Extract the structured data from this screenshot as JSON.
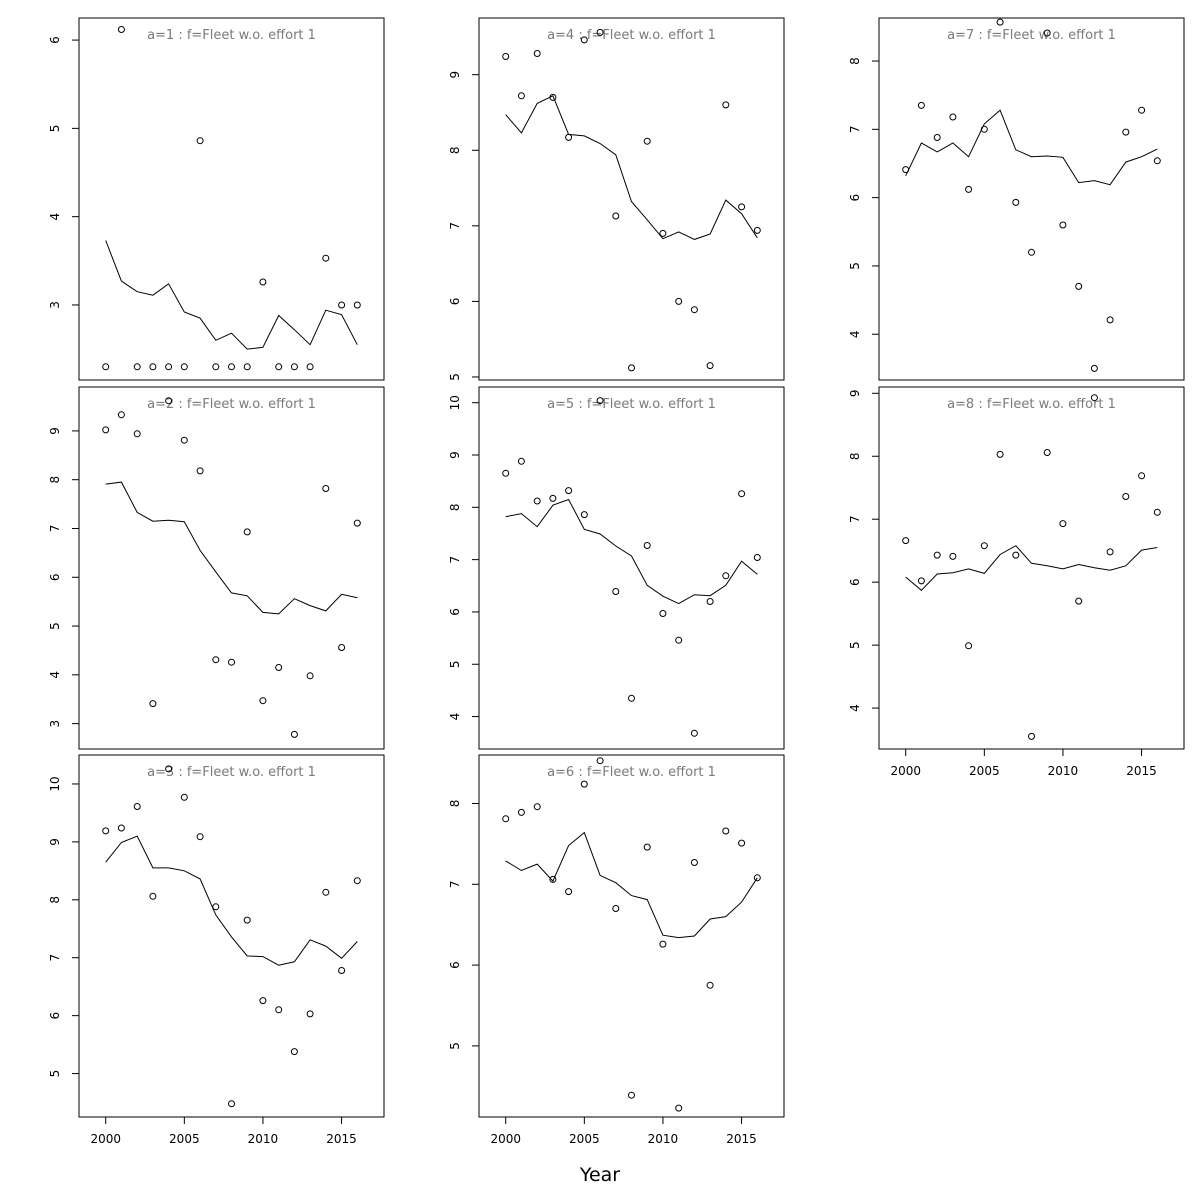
{
  "chart_data": {
    "type": "scatter",
    "xlabel": "Year",
    "x_ticks": [
      2000,
      2005,
      2010,
      2015
    ],
    "x_range": [
      1998.3,
      2017.7
    ],
    "years": [
      2000,
      2001,
      2002,
      2003,
      2004,
      2005,
      2006,
      2007,
      2008,
      2009,
      2010,
      2011,
      2012,
      2013,
      2014,
      2015,
      2016
    ],
    "marker": "open-circle",
    "panels": [
      {
        "title": "a=1  :  f=Fleet w.o. effort 1",
        "ylim": [
          2.15,
          6.25
        ],
        "y_ticks": [
          3,
          4,
          5,
          6
        ],
        "points": [
          2.3,
          6.12,
          2.3,
          2.3,
          2.3,
          2.3,
          4.86,
          2.3,
          2.3,
          2.3,
          3.26,
          2.3,
          2.3,
          2.3,
          3.53,
          3.0,
          3.0
        ],
        "line": [
          3.73,
          3.27,
          3.15,
          3.11,
          3.24,
          2.92,
          2.85,
          2.6,
          2.68,
          2.5,
          2.52,
          2.88,
          2.72,
          2.55,
          2.94,
          2.89,
          2.55
        ]
      },
      {
        "title": "a=4  :  f=Fleet w.o. effort 1",
        "ylim": [
          4.96,
          9.75
        ],
        "y_ticks": [
          5,
          6,
          7,
          8,
          9
        ],
        "points": [
          9.24,
          8.72,
          9.28,
          8.7,
          8.17,
          9.46,
          9.56,
          7.13,
          5.12,
          8.12,
          6.9,
          6.0,
          5.89,
          5.15,
          8.6,
          7.25,
          6.94
        ],
        "line": [
          8.47,
          8.23,
          8.62,
          8.72,
          8.21,
          8.19,
          8.09,
          7.94,
          7.32,
          7.08,
          6.83,
          6.92,
          6.82,
          6.89,
          7.34,
          7.16,
          6.84
        ]
      },
      {
        "title": "a=7  :  f=Fleet w.o. effort 1",
        "ylim": [
          3.33,
          8.63
        ],
        "y_ticks": [
          4,
          5,
          6,
          7,
          8
        ],
        "points": [
          6.41,
          7.35,
          6.88,
          7.18,
          6.12,
          7.0,
          8.57,
          5.93,
          5.2,
          8.41,
          5.6,
          4.7,
          3.5,
          4.21,
          6.96,
          7.28,
          6.54
        ],
        "line": [
          6.32,
          6.8,
          6.67,
          6.8,
          6.6,
          7.08,
          7.28,
          6.7,
          6.6,
          6.61,
          6.59,
          6.22,
          6.25,
          6.19,
          6.52,
          6.6,
          6.71
        ]
      },
      {
        "title": "a=2  :  f=Fleet w.o. effort 1",
        "ylim": [
          2.48,
          9.9
        ],
        "y_ticks": [
          3,
          4,
          5,
          6,
          7,
          8,
          9
        ],
        "points": [
          9.02,
          9.33,
          8.94,
          3.41,
          9.62,
          8.81,
          8.18,
          4.31,
          4.26,
          6.93,
          3.47,
          4.15,
          2.78,
          3.98,
          7.82,
          4.56,
          7.11
        ],
        "line": [
          7.91,
          7.95,
          7.33,
          7.15,
          7.17,
          7.14,
          6.55,
          6.11,
          5.68,
          5.62,
          5.28,
          5.25,
          5.56,
          5.42,
          5.31,
          5.65,
          5.58
        ]
      },
      {
        "title": "a=5  :  f=Fleet w.o. effort 1",
        "ylim": [
          3.38,
          10.3
        ],
        "y_ticks": [
          4,
          5,
          6,
          7,
          8,
          9,
          10
        ],
        "points": [
          8.65,
          8.88,
          8.12,
          8.17,
          8.32,
          7.86,
          10.04,
          6.39,
          4.35,
          7.27,
          5.97,
          5.46,
          3.68,
          6.2,
          6.69,
          8.26,
          7.04
        ],
        "line": [
          7.82,
          7.88,
          7.63,
          8.04,
          8.15,
          7.58,
          7.49,
          7.26,
          7.07,
          6.51,
          6.3,
          6.16,
          6.33,
          6.31,
          6.51,
          6.97,
          6.72
        ]
      },
      {
        "title": "a=8  :  f=Fleet w.o. effort 1",
        "ylim": [
          3.35,
          9.1
        ],
        "y_ticks": [
          4,
          5,
          6,
          7,
          8,
          9
        ],
        "points": [
          6.66,
          6.02,
          6.43,
          6.41,
          4.99,
          6.58,
          8.03,
          6.43,
          3.55,
          8.06,
          6.93,
          5.7,
          8.93,
          6.48,
          7.36,
          7.69,
          7.11
        ],
        "line": [
          6.08,
          5.87,
          6.13,
          6.15,
          6.21,
          6.14,
          6.44,
          6.58,
          6.3,
          6.26,
          6.21,
          6.28,
          6.23,
          6.19,
          6.26,
          6.51,
          6.55
        ]
      },
      {
        "title": "a=3  :  f=Fleet w.o. effort 1",
        "ylim": [
          4.25,
          10.5
        ],
        "y_ticks": [
          5,
          6,
          7,
          8,
          9,
          10
        ],
        "points": [
          9.19,
          9.24,
          9.61,
          8.06,
          10.26,
          9.77,
          9.09,
          7.88,
          4.48,
          7.65,
          6.26,
          6.1,
          5.38,
          6.03,
          8.13,
          6.78,
          8.33
        ],
        "line": [
          8.65,
          8.99,
          9.1,
          8.55,
          8.55,
          8.5,
          8.36,
          7.74,
          7.36,
          7.03,
          7.02,
          6.87,
          6.93,
          7.31,
          7.2,
          6.99,
          7.28
        ]
      },
      {
        "title": "a=6  :  f=Fleet w.o. effort 1",
        "ylim": [
          4.12,
          8.6
        ],
        "y_ticks": [
          5,
          6,
          7,
          8
        ],
        "points": [
          7.81,
          7.89,
          7.96,
          7.06,
          6.91,
          8.24,
          8.53,
          6.7,
          4.39,
          7.46,
          6.26,
          4.23,
          7.27,
          5.75,
          7.66,
          7.51,
          7.08
        ],
        "line": [
          7.29,
          7.17,
          7.25,
          7.04,
          7.48,
          7.64,
          7.11,
          7.02,
          6.86,
          6.81,
          6.37,
          6.34,
          6.36,
          6.57,
          6.6,
          6.78,
          7.08
        ]
      }
    ]
  }
}
